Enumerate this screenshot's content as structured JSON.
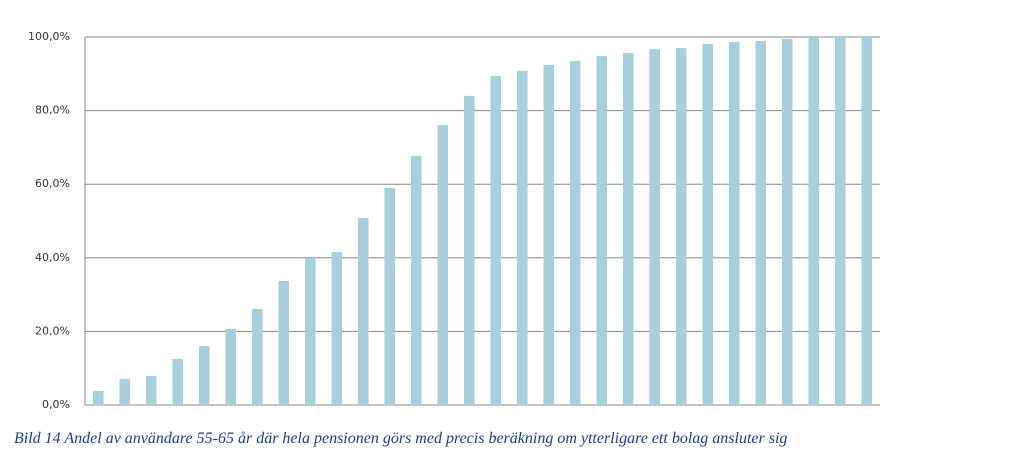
{
  "chart_data": {
    "type": "bar",
    "caption": "Bild 14 Andel av användare 55-65 år där hela pensionen görs med  precis beräkning om ytterligare ett bolag ansluter sig",
    "categories": [
      null,
      null,
      null,
      null,
      null,
      null,
      null,
      null,
      null,
      null,
      null,
      null,
      null,
      null,
      null,
      null,
      null,
      null,
      null,
      null,
      null,
      null,
      null,
      null,
      null,
      null,
      null,
      null,
      null,
      null
    ],
    "values": [
      3.8,
      7.1,
      7.9,
      12.5,
      16.0,
      20.7,
      26.1,
      33.7,
      40.0,
      41.6,
      50.8,
      59.0,
      67.7,
      76.1,
      84.0,
      89.4,
      90.8,
      92.4,
      93.5,
      94.8,
      95.7,
      96.7,
      97.0,
      98.1,
      98.6,
      98.9,
      99.5,
      100,
      100,
      100
    ],
    "color": "#a8d0dc",
    "ylim": [
      0,
      100
    ],
    "yticks": [
      {
        "value": 0,
        "label": "0,0%"
      },
      {
        "value": 20,
        "label": "20,0%"
      },
      {
        "value": 40,
        "label": "40,0%"
      },
      {
        "value": 60,
        "label": "60,0%"
      },
      {
        "value": 80,
        "label": "80,0%"
      },
      {
        "value": 100,
        "label": "100,0%"
      }
    ],
    "grid": true
  }
}
